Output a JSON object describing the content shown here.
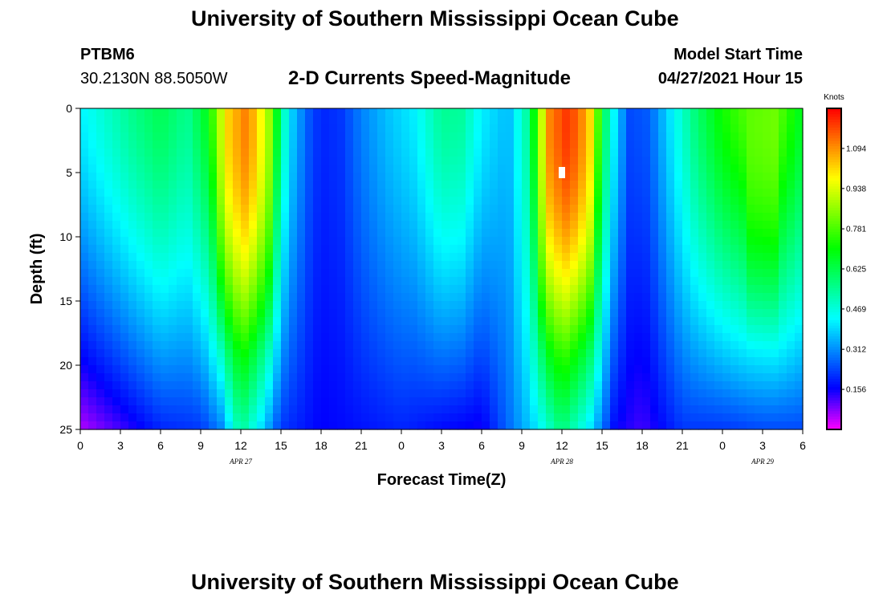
{
  "header": {
    "title": "University of Southern Mississippi Ocean Cube",
    "station_id": "PTBM6",
    "coordinates": "30.2130N  88.5050W",
    "chart_title": "2-D Currents Speed-Magnitude",
    "model_label": "Model Start Time",
    "model_time": "04/27/2021 Hour 15"
  },
  "footer": {
    "title": "University of Southern Mississippi Ocean Cube"
  },
  "chart_data": {
    "type": "heatmap",
    "title": "2-D Currents Speed-Magnitude",
    "xlabel": "Forecast Time(Z)",
    "ylabel": "Depth (ft)",
    "colorbar_label": "Knots",
    "x_range_hours": [
      0,
      54
    ],
    "y_range_ft": [
      0,
      25
    ],
    "y_inverted": true,
    "x_ticks": [
      "0",
      "3",
      "6",
      "9",
      "12",
      "15",
      "18",
      "21",
      "0",
      "3",
      "6",
      "9",
      "12",
      "15",
      "18",
      "21",
      "0",
      "3",
      "6"
    ],
    "y_ticks": [
      {
        "value": 0,
        "label": "0"
      },
      {
        "value": 5,
        "label": "5"
      },
      {
        "value": 10,
        "label": "10"
      },
      {
        "value": 15,
        "label": "15"
      },
      {
        "value": 20,
        "label": "20"
      },
      {
        "value": 25,
        "label": "25"
      }
    ],
    "date_labels": [
      {
        "hour": 12,
        "label": "APR 27"
      },
      {
        "hour": 36,
        "label": "APR 28"
      },
      {
        "hour": 51,
        "label": "APR 29"
      }
    ],
    "colorbar_ticks": [
      {
        "value": 0.156,
        "label": "0.156"
      },
      {
        "value": 0.312,
        "label": "0.312"
      },
      {
        "value": 0.469,
        "label": "0.469"
      },
      {
        "value": 0.625,
        "label": "0.625"
      },
      {
        "value": 0.781,
        "label": "0.781"
      },
      {
        "value": 0.938,
        "label": "0.938"
      },
      {
        "value": 1.094,
        "label": "1.094"
      }
    ],
    "colorbar_range": [
      0,
      1.25
    ],
    "max_marker": {
      "hour": 36,
      "depth": 5
    },
    "surface_speed_knots": [
      {
        "hour": 0,
        "speed": 0.42
      },
      {
        "hour": 2,
        "speed": 0.49
      },
      {
        "hour": 4,
        "speed": 0.56
      },
      {
        "hour": 6,
        "speed": 0.62
      },
      {
        "hour": 8,
        "speed": 0.55
      },
      {
        "hour": 9.5,
        "speed": 0.68
      },
      {
        "hour": 11,
        "speed": 1.02
      },
      {
        "hour": 12.5,
        "speed": 1.12
      },
      {
        "hour": 14,
        "speed": 0.9
      },
      {
        "hour": 15.5,
        "speed": 0.42
      },
      {
        "hour": 17,
        "speed": 0.26
      },
      {
        "hour": 18,
        "speed": 0.2
      },
      {
        "hour": 19.5,
        "speed": 0.22
      },
      {
        "hour": 21,
        "speed": 0.3
      },
      {
        "hour": 23,
        "speed": 0.37
      },
      {
        "hour": 25,
        "speed": 0.42
      },
      {
        "hour": 27,
        "speed": 0.55
      },
      {
        "hour": 28.5,
        "speed": 0.54
      },
      {
        "hour": 30,
        "speed": 0.42
      },
      {
        "hour": 32,
        "speed": 0.36
      },
      {
        "hour": 33.5,
        "speed": 0.55
      },
      {
        "hour": 35,
        "speed": 1.1
      },
      {
        "hour": 36.5,
        "speed": 1.2
      },
      {
        "hour": 38,
        "speed": 1.05
      },
      {
        "hour": 39.5,
        "speed": 0.5
      },
      {
        "hour": 41,
        "speed": 0.24
      },
      {
        "hour": 42.5,
        "speed": 0.26
      },
      {
        "hour": 44,
        "speed": 0.4
      },
      {
        "hour": 46,
        "speed": 0.58
      },
      {
        "hour": 48,
        "speed": 0.72
      },
      {
        "hour": 50,
        "speed": 0.8
      },
      {
        "hour": 52,
        "speed": 0.82
      },
      {
        "hour": 54,
        "speed": 0.66
      }
    ],
    "bottom_speed_knots": [
      {
        "hour": 0,
        "speed": 0.05
      },
      {
        "hour": 3,
        "speed": 0.12
      },
      {
        "hour": 6,
        "speed": 0.2
      },
      {
        "hour": 9,
        "speed": 0.22
      },
      {
        "hour": 10.5,
        "speed": 0.3
      },
      {
        "hour": 12,
        "speed": 0.55
      },
      {
        "hour": 13.5,
        "speed": 0.4
      },
      {
        "hour": 15,
        "speed": 0.22
      },
      {
        "hour": 18,
        "speed": 0.16
      },
      {
        "hour": 21,
        "speed": 0.18
      },
      {
        "hour": 24,
        "speed": 0.2
      },
      {
        "hour": 27,
        "speed": 0.17
      },
      {
        "hour": 30,
        "speed": 0.15
      },
      {
        "hour": 34,
        "speed": 0.4
      },
      {
        "hour": 36,
        "speed": 0.58
      },
      {
        "hour": 38,
        "speed": 0.42
      },
      {
        "hour": 40,
        "speed": 0.16
      },
      {
        "hour": 42,
        "speed": 0.12
      },
      {
        "hour": 45,
        "speed": 0.22
      },
      {
        "hour": 48,
        "speed": 0.22
      },
      {
        "hour": 51,
        "speed": 0.24
      },
      {
        "hour": 54,
        "speed": 0.24
      }
    ]
  }
}
